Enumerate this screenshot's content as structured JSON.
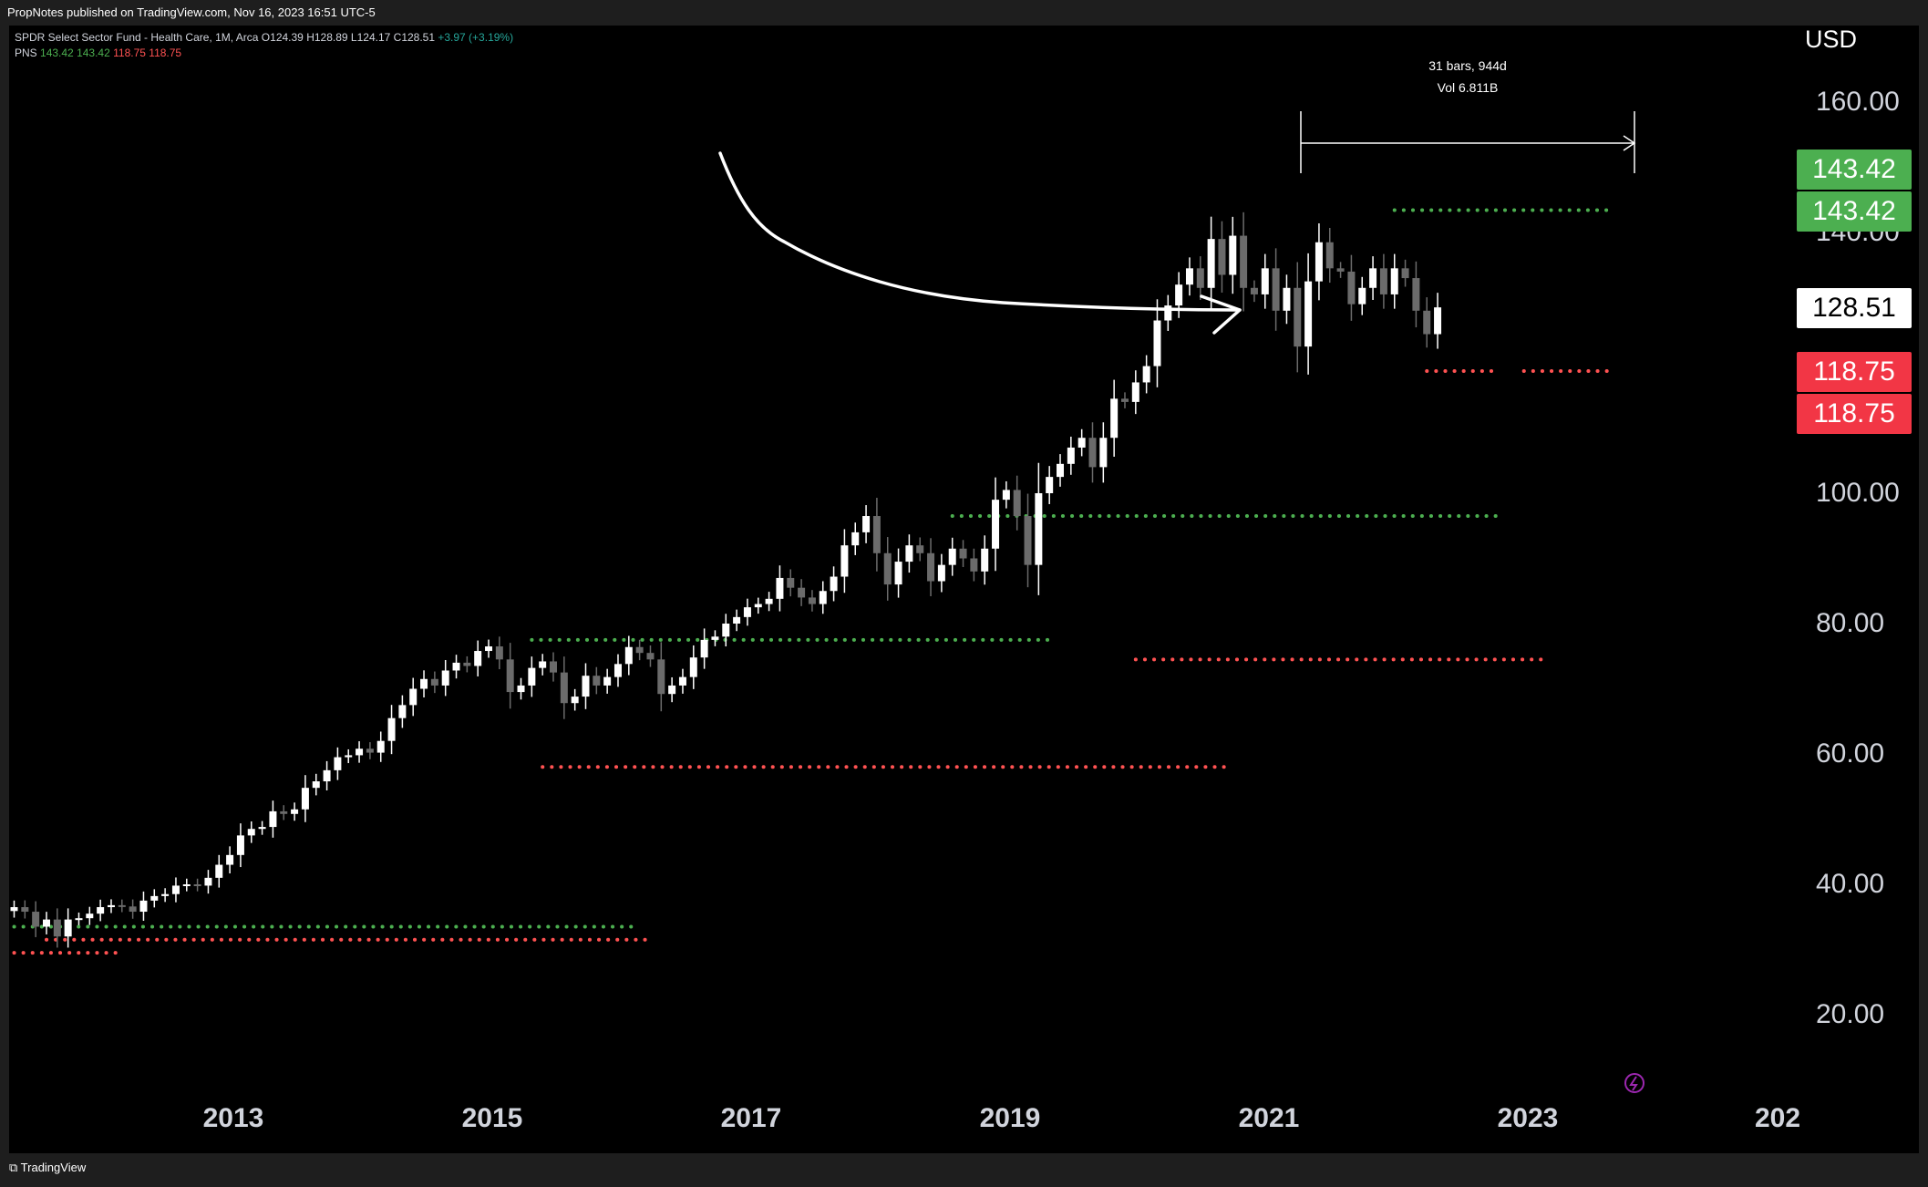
{
  "header": {
    "published_by": "PropNotes published on TradingView.com, Nov 16, 2023 16:51 UTC-5"
  },
  "footer": {
    "brand": "TradingView"
  },
  "legend": {
    "symbol": "SPDR Select Sector Fund - Health Care, 1M, Arca",
    "o_label": "O",
    "o": "124.39",
    "h_label": "H",
    "h": "128.89",
    "l_label": "L",
    "l": "124.17",
    "c_label": "C",
    "c": "128.51",
    "change": "+3.97 (+3.19%)",
    "indicator": "PNS",
    "ind_values": [
      "143.42",
      "143.42",
      "118.75",
      "118.75"
    ]
  },
  "measure": {
    "line1": "31 bars, 944d",
    "line2": "Vol 6.811B"
  },
  "price_axis": {
    "currency": "USD",
    "labels": [
      "160.00",
      "140.00",
      "100.00",
      "80.00",
      "60.00",
      "40.00",
      "20.00"
    ],
    "badges": [
      {
        "text": "143.42",
        "color": "#4caf50"
      },
      {
        "text": "143.42",
        "color": "#4caf50"
      },
      {
        "text": "128.51",
        "color": "#ffffff"
      },
      {
        "text": "118.75",
        "color": "#f23645"
      },
      {
        "text": "118.75",
        "color": "#f23645"
      }
    ]
  },
  "time_axis": {
    "labels": [
      "2013",
      "2015",
      "2017",
      "2019",
      "2021",
      "2023",
      "202"
    ]
  },
  "colors": {
    "up": "#ffffff",
    "down": "#6b6b6b",
    "resistance": "#4caf50",
    "support": "#ff5252"
  },
  "chart_data": {
    "type": "candlestick",
    "interval": "1M",
    "x_start": "2011-07",
    "ylim": [
      5,
      168
    ],
    "closes": [
      36.5,
      35.8,
      33.5,
      34.6,
      32.0,
      34.6,
      34.8,
      35.5,
      36.5,
      36.8,
      36.6,
      35.8,
      37.5,
      38.2,
      38.5,
      39.8,
      40.0,
      39.8,
      41.0,
      43.0,
      44.5,
      47.5,
      48.5,
      48.8,
      51.2,
      50.8,
      51.5,
      54.8,
      55.8,
      57.5,
      59.5,
      59.8,
      60.8,
      60.2,
      62.0,
      65.5,
      67.5,
      70.0,
      71.5,
      70.5,
      72.8,
      74.0,
      73.5,
      75.8,
      76.5,
      74.5,
      69.5,
      70.5,
      73.2,
      74.2,
      72.5,
      67.8,
      68.8,
      72.0,
      70.5,
      71.8,
      73.8,
      76.4,
      75.5,
      74.5,
      69.2,
      70.5,
      71.8,
      74.8,
      77.5,
      78.0,
      80.0,
      81.0,
      82.5,
      83.0,
      83.8,
      87.0,
      85.5,
      84.0,
      83.0,
      85.0,
      87.2,
      92.0,
      94.0,
      96.5,
      90.8,
      86.0,
      89.5,
      92.0,
      90.8,
      86.5,
      89.0,
      91.5,
      90.0,
      88.0,
      91.5,
      99.0,
      100.5,
      96.5,
      89.0,
      100.0,
      102.5,
      104.5,
      107.0,
      108.5,
      104.0,
      108.5,
      114.5,
      114.0,
      117.0,
      119.5,
      126.5,
      128.8,
      132.0,
      134.5,
      131.5,
      139.0,
      133.5,
      139.5,
      131.5,
      130.5,
      134.5,
      128.0,
      131.5,
      122.5,
      132.5,
      138.5,
      134.5,
      134.0,
      129.0,
      131.5,
      134.5,
      130.5,
      134.5,
      133.0,
      128.0,
      124.4,
      128.51
    ],
    "series": [
      {
        "name": "PNS resistance",
        "levels": [
          {
            "from": "2011-07",
            "to": "2016-05",
            "value": 33.5
          },
          {
            "from": "2015-07",
            "to": "2019-07",
            "value": 77.5
          },
          {
            "from": "2018-10",
            "to": "2023-01",
            "value": 96.5
          },
          {
            "from": "2022-03",
            "to": "2023-11",
            "value": 143.42
          }
        ]
      },
      {
        "name": "PNS support",
        "levels": [
          {
            "from": "2011-07",
            "to": "2012-05",
            "value": 29.5
          },
          {
            "from": "2011-10",
            "to": "2016-06",
            "value": 31.5
          },
          {
            "from": "2015-08",
            "to": "2020-12",
            "value": 58.0
          },
          {
            "from": "2020-03",
            "to": "2023-05",
            "value": 74.5
          },
          {
            "from": "2022-06",
            "to": "2022-12",
            "value": 118.75
          },
          {
            "from": "2023-03",
            "to": "2023-11",
            "value": 118.75
          }
        ]
      }
    ]
  }
}
